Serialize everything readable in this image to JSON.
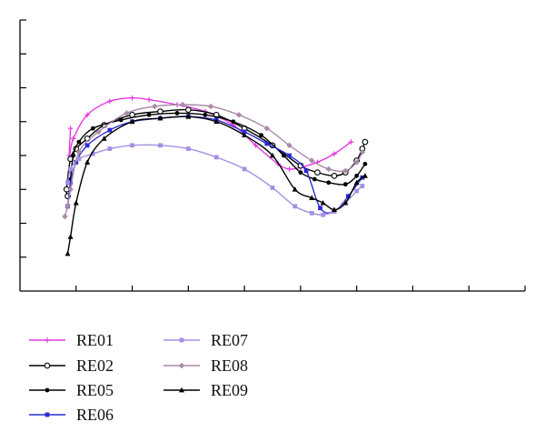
{
  "chart_data": {
    "type": "line",
    "title": "",
    "xlabel": "",
    "ylabel": "",
    "xlim": [
      0,
      9
    ],
    "ylim": [
      0,
      8
    ],
    "grid": false,
    "legend_position": "bottom-left",
    "series": [
      {
        "name": "RE01",
        "color": "#e23be0",
        "marker": "plus",
        "x": [
          0.9,
          0.88,
          0.95,
          1.2,
          1.6,
          2.0,
          2.3,
          2.8,
          3.3,
          3.8,
          4.2,
          4.6,
          4.8,
          5.0,
          5.3,
          5.6,
          5.9
        ],
        "y": [
          4.8,
          4.0,
          4.5,
          5.2,
          5.6,
          5.7,
          5.65,
          5.5,
          5.3,
          4.9,
          4.3,
          3.75,
          3.6,
          3.65,
          3.8,
          4.05,
          4.4
        ]
      },
      {
        "name": "RE02",
        "color": "#000000",
        "marker": "circle",
        "x": [
          0.85,
          0.83,
          0.9,
          1.0,
          1.2,
          1.5,
          2.0,
          2.5,
          3.0,
          3.5,
          4.0,
          4.5,
          5.0,
          5.3,
          5.6,
          5.8,
          6.0,
          6.1,
          6.15
        ],
        "y": [
          2.8,
          3.0,
          3.9,
          4.2,
          4.5,
          4.9,
          5.2,
          5.3,
          5.35,
          5.2,
          4.8,
          4.3,
          3.7,
          3.5,
          3.4,
          3.5,
          3.85,
          4.2,
          4.4
        ]
      },
      {
        "name": "RE05",
        "color": "#000000",
        "marker": "dot",
        "x": [
          0.9,
          0.95,
          1.05,
          1.3,
          1.8,
          2.3,
          2.8,
          3.3,
          3.8,
          4.3,
          4.7,
          5.0,
          5.25,
          5.5,
          5.8,
          6.0,
          6.15
        ],
        "y": [
          3.3,
          4.0,
          4.4,
          4.8,
          5.05,
          5.2,
          5.25,
          5.2,
          5.0,
          4.6,
          4.0,
          3.5,
          3.3,
          3.2,
          3.15,
          3.4,
          3.75
        ]
      },
      {
        "name": "RE06",
        "color": "#2a2ad6",
        "marker": "square",
        "x": [
          0.85,
          0.9,
          1.0,
          1.2,
          1.6,
          2.0,
          2.5,
          3.0,
          3.5,
          4.0,
          4.4,
          4.8,
          5.1,
          5.35,
          5.6,
          5.85,
          6.1
        ],
        "y": [
          2.5,
          3.2,
          3.8,
          4.3,
          4.75,
          5.0,
          5.1,
          5.15,
          5.05,
          4.7,
          4.35,
          4.0,
          3.55,
          2.45,
          2.35,
          2.8,
          3.35
        ]
      },
      {
        "name": "RE07",
        "color": "#a58fe3",
        "marker": "square",
        "x": [
          0.85,
          0.9,
          1.05,
          1.3,
          1.6,
          2.0,
          2.5,
          3.0,
          3.5,
          4.0,
          4.5,
          4.9,
          5.2,
          5.4,
          5.6,
          5.8,
          6.0,
          6.1
        ],
        "y": [
          3.2,
          3.6,
          3.9,
          4.05,
          4.2,
          4.3,
          4.3,
          4.2,
          3.95,
          3.6,
          3.05,
          2.5,
          2.3,
          2.25,
          2.35,
          2.6,
          2.95,
          3.1
        ]
      },
      {
        "name": "RE08",
        "color": "#a98aa7",
        "marker": "diamond",
        "x": [
          0.8,
          0.85,
          0.9,
          1.05,
          1.4,
          1.9,
          2.4,
          2.9,
          3.4,
          3.9,
          4.4,
          4.8,
          5.2,
          5.5,
          5.8,
          6.0,
          6.1
        ],
        "y": [
          2.2,
          2.5,
          3.0,
          4.1,
          4.7,
          5.25,
          5.45,
          5.5,
          5.45,
          5.2,
          4.8,
          4.3,
          3.85,
          3.6,
          3.55,
          3.8,
          4.1
        ]
      },
      {
        "name": "RE09",
        "color": "#000000",
        "marker": "triangle",
        "x": [
          0.85,
          0.9,
          1.0,
          1.2,
          1.5,
          2.0,
          2.5,
          3.0,
          3.5,
          4.0,
          4.5,
          4.9,
          5.2,
          5.4,
          5.6,
          5.8,
          6.0,
          6.15
        ],
        "y": [
          1.1,
          1.6,
          2.6,
          3.8,
          4.5,
          5.0,
          5.1,
          5.15,
          5.0,
          4.6,
          4.0,
          3.0,
          2.75,
          2.6,
          2.4,
          2.6,
          3.2,
          3.4
        ]
      }
    ]
  }
}
